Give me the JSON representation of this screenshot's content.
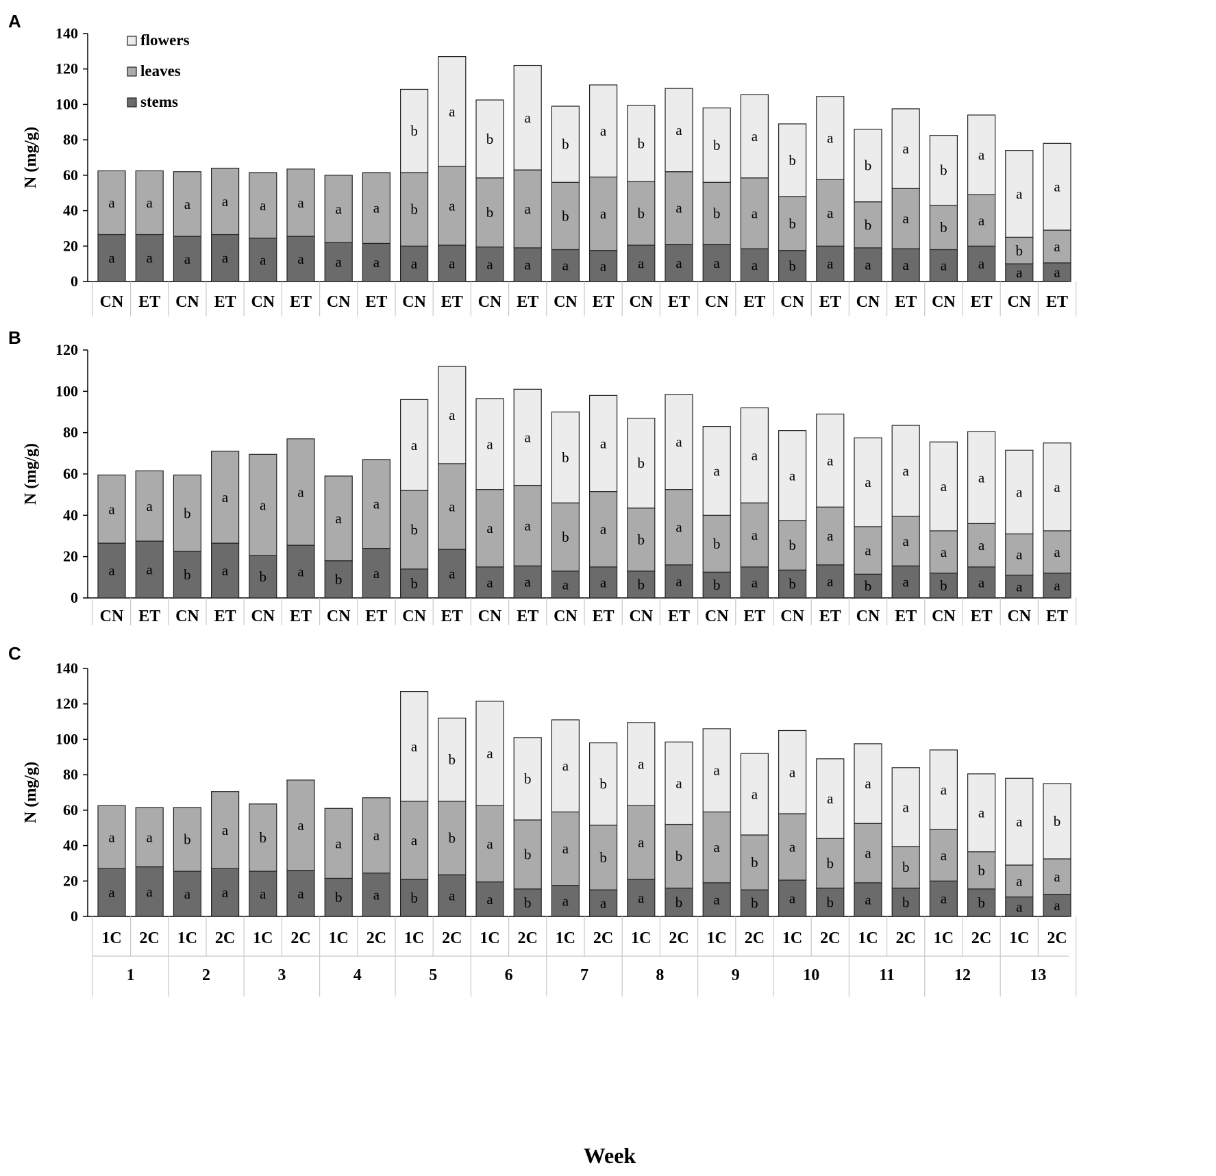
{
  "colors": {
    "stems": "#6b6b6b",
    "leaves": "#ababab",
    "flowers": "#ececec",
    "outline": "#222222",
    "axis": "#000000",
    "table_lines": "#c8c8c8"
  },
  "legend": {
    "placement": "top-left (panel A)",
    "items": [
      {
        "name": "flowers",
        "color": "#ececec"
      },
      {
        "name": "leaves",
        "color": "#ababab"
      },
      {
        "name": "stems",
        "color": "#6b6b6b"
      }
    ]
  },
  "x_title": "Week",
  "chart_data": [
    {
      "panel": "A",
      "type": "bar",
      "stacked": true,
      "ylabel": "N (mg/g)",
      "ylim": [
        0,
        140
      ],
      "yticks": [
        0,
        20,
        40,
        60,
        80,
        100,
        120,
        140
      ],
      "categories": [
        "CN",
        "ET",
        "CN",
        "ET",
        "CN",
        "ET",
        "CN",
        "ET",
        "CN",
        "ET",
        "CN",
        "ET",
        "CN",
        "ET",
        "CN",
        "ET",
        "CN",
        "ET",
        "CN",
        "ET",
        "CN",
        "ET",
        "CN",
        "ET",
        "CN",
        "ET"
      ],
      "series": [
        {
          "name": "stems",
          "values": [
            26.5,
            26.5,
            25.5,
            26.5,
            24.5,
            25.5,
            22,
            21.5,
            20,
            20.5,
            19.5,
            19,
            18,
            17.5,
            20.5,
            21,
            21,
            18.5,
            17.5,
            20,
            19,
            18.5,
            18,
            20,
            10,
            10.5
          ],
          "labels": [
            "a",
            "a",
            "a",
            "a",
            "a",
            "a",
            "a",
            "a",
            "a",
            "a",
            "a",
            "a",
            "a",
            "a",
            "a",
            "a",
            "a",
            "a",
            "b",
            "a",
            "a",
            "a",
            "a",
            "a",
            "a",
            "a"
          ]
        },
        {
          "name": "leaves",
          "values": [
            36,
            36,
            36.5,
            37.5,
            37,
            38,
            38,
            40,
            41.5,
            44.5,
            39,
            44,
            38,
            41.5,
            36,
            41,
            35,
            40,
            30.5,
            37.5,
            26,
            34,
            25,
            29,
            15,
            18.5
          ],
          "labels": [
            "a",
            "a",
            "a",
            "a",
            "a",
            "a",
            "a",
            "a",
            "b",
            "a",
            "b",
            "a",
            "b",
            "a",
            "b",
            "a",
            "b",
            "a",
            "b",
            "a",
            "b",
            "a",
            "b",
            "a",
            "b",
            "a"
          ]
        },
        {
          "name": "flowers",
          "values": [
            null,
            null,
            null,
            null,
            null,
            null,
            null,
            null,
            47,
            62,
            44,
            59,
            43,
            52,
            43,
            47,
            42,
            47,
            41,
            47,
            41,
            45,
            39.5,
            45,
            49,
            49
          ],
          "labels": [
            null,
            null,
            null,
            null,
            null,
            null,
            null,
            null,
            "b",
            "a",
            "b",
            "a",
            "b",
            "a",
            "b",
            "a",
            "b",
            "a",
            "b",
            "a",
            "b",
            "a",
            "b",
            "a",
            "a",
            "a"
          ]
        }
      ]
    },
    {
      "panel": "B",
      "type": "bar",
      "stacked": true,
      "ylabel": "N (mg/g)",
      "ylim": [
        0,
        120
      ],
      "yticks": [
        0,
        20,
        40,
        60,
        80,
        100,
        120
      ],
      "categories": [
        "CN",
        "ET",
        "CN",
        "ET",
        "CN",
        "ET",
        "CN",
        "ET",
        "CN",
        "ET",
        "CN",
        "ET",
        "CN",
        "ET",
        "CN",
        "ET",
        "CN",
        "ET",
        "CN",
        "ET",
        "CN",
        "ET",
        "CN",
        "ET",
        "CN",
        "ET"
      ],
      "series": [
        {
          "name": "stems",
          "values": [
            26.5,
            27.5,
            22.5,
            26.5,
            20.5,
            25.5,
            18,
            24,
            14,
            23.5,
            15,
            15.5,
            13,
            15,
            13,
            16,
            12.5,
            15,
            13.5,
            16,
            11.5,
            15.5,
            12,
            15,
            11,
            12
          ],
          "labels": [
            "a",
            "a",
            "b",
            "a",
            "b",
            "a",
            "b",
            "a",
            "b",
            "a",
            "a",
            "a",
            "a",
            "a",
            "b",
            "a",
            "b",
            "a",
            "b",
            "a",
            "b",
            "a",
            "b",
            "a",
            "a",
            "a"
          ]
        },
        {
          "name": "leaves",
          "values": [
            33,
            34,
            37,
            44.5,
            49,
            51.5,
            41,
            43,
            38,
            41.5,
            37.5,
            39,
            33,
            36.5,
            30.5,
            36.5,
            27.5,
            31,
            24,
            28,
            23,
            24,
            20.5,
            21,
            20,
            20.5
          ],
          "labels": [
            "a",
            "a",
            "b",
            "a",
            "a",
            "a",
            "a",
            "a",
            "b",
            "a",
            "a",
            "a",
            "b",
            "a",
            "b",
            "a",
            "b",
            "a",
            "b",
            "a",
            "a",
            "a",
            "a",
            "a",
            "a",
            "a"
          ]
        },
        {
          "name": "flowers",
          "values": [
            null,
            null,
            null,
            null,
            null,
            null,
            null,
            null,
            44,
            47,
            44,
            46.5,
            44,
            46.5,
            43.5,
            46,
            43,
            46,
            43.5,
            45,
            43,
            44,
            43,
            44.5,
            40.5,
            42.5
          ],
          "labels": [
            null,
            null,
            null,
            null,
            null,
            null,
            null,
            null,
            "a",
            "a",
            "a",
            "a",
            "b",
            "a",
            "b",
            "a",
            "a",
            "a",
            "a",
            "a",
            "a",
            "a",
            "a",
            "a",
            "a",
            "a"
          ]
        }
      ]
    },
    {
      "panel": "C",
      "type": "bar",
      "stacked": true,
      "ylabel": "N (mg/g)",
      "ylim": [
        0,
        140
      ],
      "yticks": [
        0,
        20,
        40,
        60,
        80,
        100,
        120,
        140
      ],
      "categories": [
        "1C",
        "2C",
        "1C",
        "2C",
        "1C",
        "2C",
        "1C",
        "2C",
        "1C",
        "2C",
        "1C",
        "2C",
        "1C",
        "2C",
        "1C",
        "2C",
        "1C",
        "2C",
        "1C",
        "2C",
        "1C",
        "2C",
        "1C",
        "2C",
        "1C",
        "2C"
      ],
      "weeks": [
        "1",
        "2",
        "3",
        "4",
        "5",
        "6",
        "7",
        "8",
        "9",
        "10",
        "11",
        "12",
        "13"
      ],
      "series": [
        {
          "name": "stems",
          "values": [
            27,
            28,
            25.5,
            27,
            25.5,
            26,
            21.5,
            24.5,
            21,
            23.5,
            19.5,
            15.5,
            17.5,
            15,
            21,
            16,
            19,
            15,
            20.5,
            16,
            19,
            16,
            20,
            15.5,
            11,
            12.5
          ],
          "labels": [
            "a",
            "a",
            "a",
            "a",
            "a",
            "a",
            "b",
            "a",
            "b",
            "a",
            "a",
            "b",
            "a",
            "a",
            "a",
            "b",
            "a",
            "b",
            "a",
            "b",
            "a",
            "b",
            "a",
            "b",
            "a",
            "a"
          ]
        },
        {
          "name": "leaves",
          "values": [
            35.5,
            33.5,
            36,
            43.5,
            38,
            51,
            39.5,
            42.5,
            44,
            41.5,
            43,
            39,
            41.5,
            36.5,
            41.5,
            36,
            40,
            31,
            37.5,
            28,
            33.5,
            23.5,
            29,
            21,
            18,
            20
          ],
          "labels": [
            "a",
            "a",
            "b",
            "a",
            "b",
            "a",
            "a",
            "a",
            "a",
            "b",
            "a",
            "b",
            "a",
            "b",
            "a",
            "b",
            "a",
            "b",
            "a",
            "b",
            "a",
            "b",
            "a",
            "b",
            "a",
            "a"
          ]
        },
        {
          "name": "flowers",
          "values": [
            null,
            null,
            null,
            null,
            null,
            null,
            null,
            null,
            62,
            47,
            59,
            46.5,
            52,
            46.5,
            47,
            46.5,
            47,
            46,
            47,
            45,
            45,
            44.5,
            45,
            44,
            49,
            42.5
          ],
          "labels": [
            null,
            null,
            null,
            null,
            null,
            null,
            null,
            null,
            "a",
            "b",
            "a",
            "b",
            "a",
            "b",
            "a",
            "a",
            "a",
            "a",
            "a",
            "a",
            "a",
            "a",
            "a",
            "a",
            "a",
            "b"
          ]
        }
      ]
    }
  ]
}
